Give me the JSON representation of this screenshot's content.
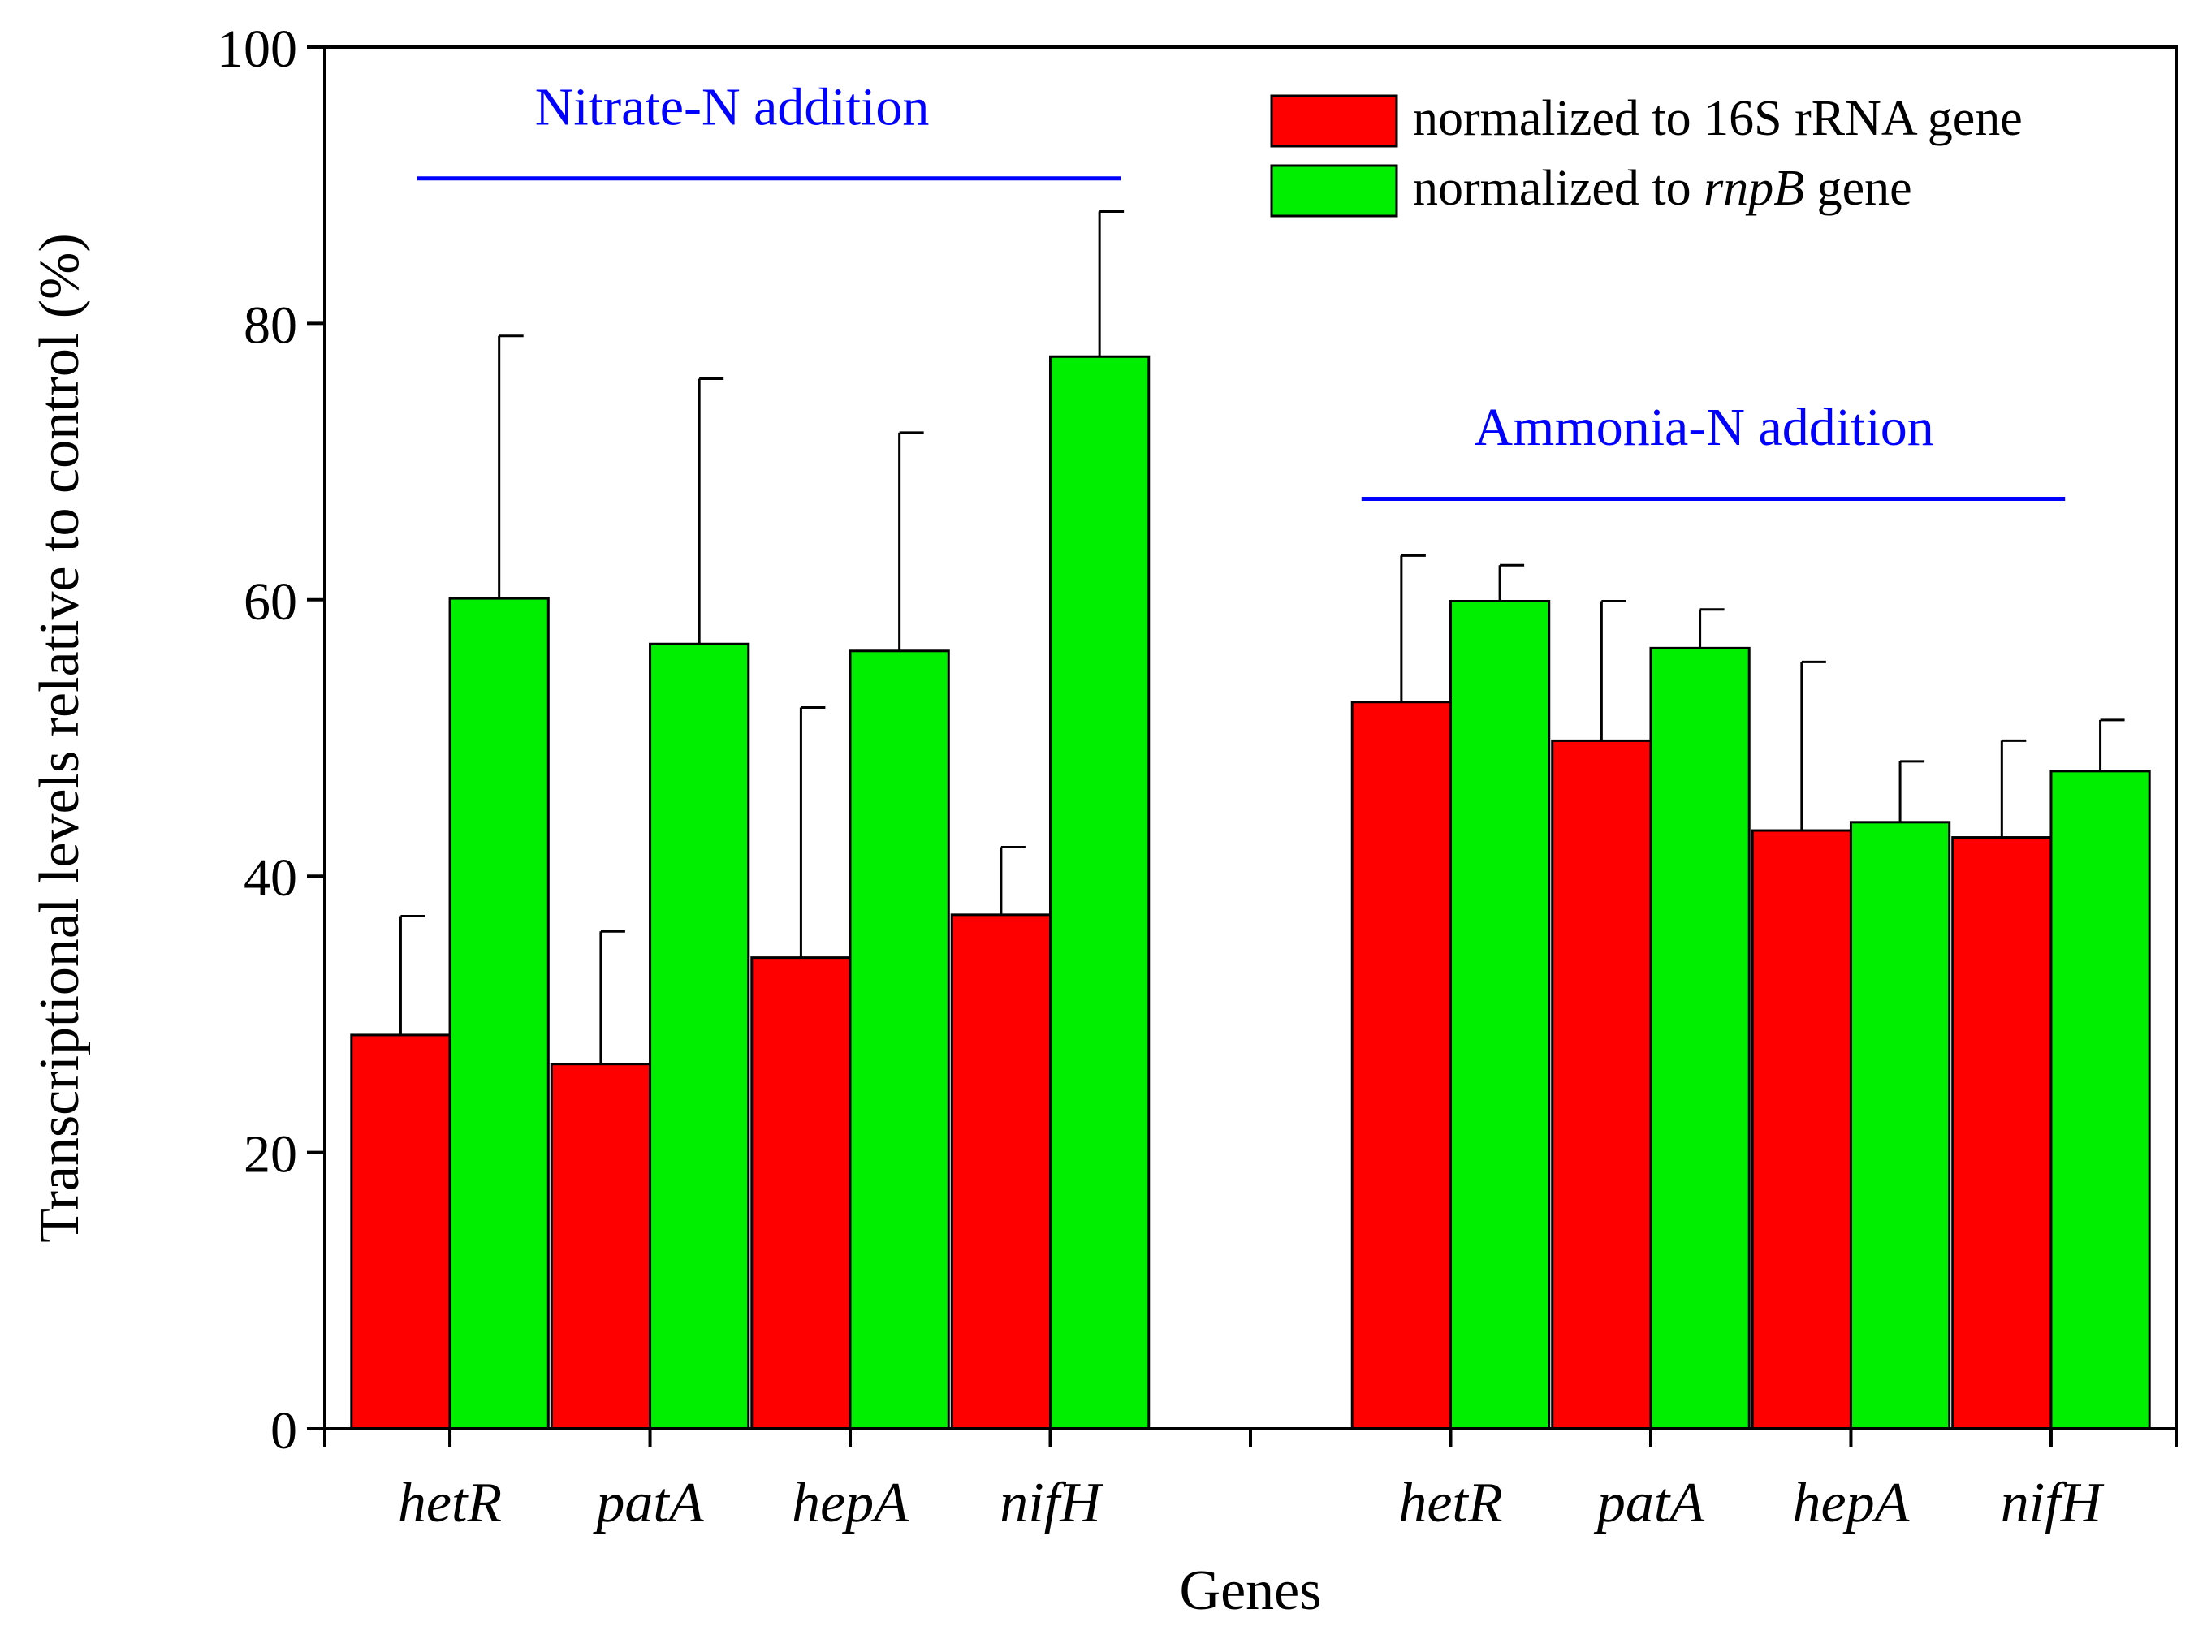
{
  "chart_data": {
    "type": "bar",
    "title": "",
    "xlabel": "Genes",
    "ylabel": "Transcriptional levels relative to control (%)",
    "ylim": [
      0,
      100
    ],
    "yticks": [
      "0",
      "20",
      "40",
      "60",
      "80",
      "100"
    ],
    "grid": false,
    "legend_position": "top-right",
    "groups": [
      {
        "label": "Nitrate-N addition",
        "color": "#0000ff",
        "categories": [
          "hetR",
          "patA",
          "hepA",
          "nifH"
        ]
      },
      {
        "label": "Ammonia-N addition",
        "color": "#0000ff",
        "categories": [
          "hetR",
          "patA",
          "hepA",
          "nifH"
        ]
      }
    ],
    "series": [
      {
        "name": "normalized to 16S rRNA gene",
        "legend_parts": [
          {
            "text": "normalized to 16S rRNA gene",
            "italic": false
          }
        ],
        "color": "#ff0000",
        "values": [
          28.5,
          26.4,
          34.1,
          37.2,
          52.6,
          49.8,
          43.3,
          42.8
        ],
        "error": [
          8.6,
          9.6,
          18.1,
          4.9,
          10.6,
          10.1,
          12.2,
          7.0
        ]
      },
      {
        "name": "normalized to rnpB gene",
        "legend_parts": [
          {
            "text": "normalized to ",
            "italic": false
          },
          {
            "text": "rnpB",
            "italic": true
          },
          {
            "text": " gene",
            "italic": false
          }
        ],
        "color": "#00ee00",
        "values": [
          60.1,
          56.8,
          56.3,
          77.6,
          59.9,
          56.5,
          43.9,
          47.6
        ],
        "error": [
          19.0,
          19.2,
          15.8,
          10.5,
          2.6,
          2.8,
          4.4,
          3.7
        ]
      }
    ]
  }
}
